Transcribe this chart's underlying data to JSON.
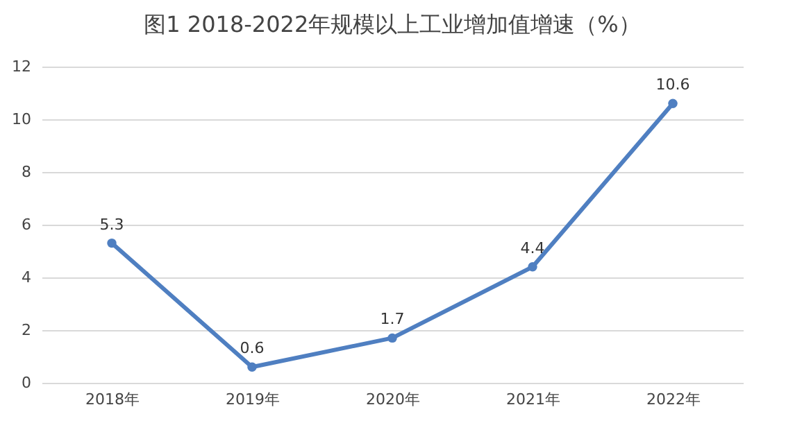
{
  "chart_data": {
    "type": "line",
    "title": "图1  2018-2022年规模以上工业增加值增速（%）",
    "categories": [
      "2018年",
      "2019年",
      "2020年",
      "2021年",
      "2022年"
    ],
    "series": [
      {
        "color": "#4f7fc1",
        "values": [
          5.3,
          0.6,
          1.7,
          4.4,
          10.6
        ]
      }
    ],
    "ylim": [
      0,
      12
    ],
    "yticks": [
      0,
      2,
      4,
      6,
      8,
      10,
      12
    ],
    "grid": "y",
    "marker": "circle",
    "data_labels": true
  }
}
